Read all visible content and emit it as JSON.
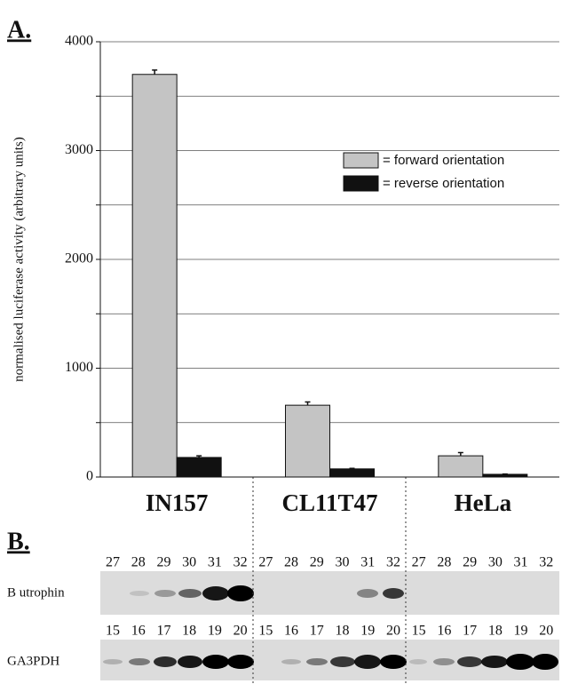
{
  "chart_data": {
    "type": "bar",
    "panel_label": "A.",
    "y_label": "normalised luciferase activity (arbitrary units)",
    "categories": [
      "IN157",
      "CL11T47",
      "HeLa"
    ],
    "series": [
      {
        "name": "= forward orientation",
        "color": "#c4c4c4",
        "values": [
          3700,
          660,
          195
        ],
        "errors": [
          40,
          30,
          30
        ]
      },
      {
        "name": "= reverse orientation",
        "color": "#111111",
        "values": [
          180,
          75,
          25
        ],
        "errors": [
          15,
          5,
          3
        ]
      }
    ],
    "ylim": [
      0,
      4000
    ],
    "yticks": [
      0,
      1000,
      2000,
      3000,
      4000
    ],
    "minor_yticks": [
      500,
      1500,
      2500,
      3500
    ],
    "grid": true
  },
  "gel": {
    "panel_label": "B.",
    "rows": [
      {
        "label": "B utrophin",
        "lanes": [
          "27",
          "28",
          "29",
          "30",
          "31",
          "32",
          "27",
          "28",
          "29",
          "30",
          "31",
          "32",
          "27",
          "28",
          "29",
          "30",
          "31",
          "32"
        ]
      },
      {
        "label": "GA3PDH",
        "lanes": [
          "15",
          "16",
          "17",
          "18",
          "19",
          "20",
          "15",
          "16",
          "17",
          "18",
          "19",
          "20",
          "15",
          "16",
          "17",
          "18",
          "19",
          "20"
        ]
      }
    ]
  }
}
